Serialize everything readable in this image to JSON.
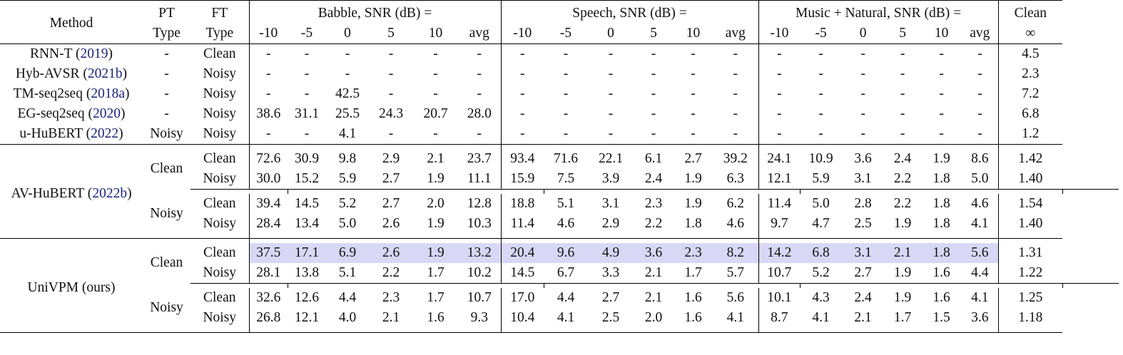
{
  "header": {
    "method": "Method",
    "pt1": "PT",
    "pt2": "Type",
    "ft1": "FT",
    "ft2": "Type",
    "babble": "Babble, SNR (dB) =",
    "speech": "Speech, SNR (dB) =",
    "music": "Music + Natural, SNR (dB) =",
    "clean": "Clean",
    "inf": "∞",
    "snr": [
      "-10",
      "-5",
      "0",
      "5",
      "10",
      "avg"
    ]
  },
  "baselines": [
    {
      "name": "RNN-T (",
      "cite": "2019",
      "close": ")",
      "pt": "-",
      "ft": "Clean",
      "babble": [
        "-",
        "-",
        "-",
        "-",
        "-",
        "-"
      ],
      "speech": [
        "-",
        "-",
        "-",
        "-",
        "-",
        "-"
      ],
      "music": [
        "-",
        "-",
        "-",
        "-",
        "-",
        "-"
      ],
      "clean": "4.5"
    },
    {
      "name": "Hyb-AVSR (",
      "cite": "2021b",
      "close": ")",
      "pt": "-",
      "ft": "Noisy",
      "babble": [
        "-",
        "-",
        "-",
        "-",
        "-",
        "-"
      ],
      "speech": [
        "-",
        "-",
        "-",
        "-",
        "-",
        "-"
      ],
      "music": [
        "-",
        "-",
        "-",
        "-",
        "-",
        "-"
      ],
      "clean": "2.3"
    },
    {
      "name": "TM-seq2seq (",
      "cite": "2018a",
      "close": ")",
      "pt": "-",
      "ft": "Noisy",
      "babble": [
        "-",
        "-",
        "42.5",
        "-",
        "-",
        "-"
      ],
      "speech": [
        "-",
        "-",
        "-",
        "-",
        "-",
        "-"
      ],
      "music": [
        "-",
        "-",
        "-",
        "-",
        "-",
        "-"
      ],
      "clean": "7.2"
    },
    {
      "name": "EG-seq2seq (",
      "cite": "2020",
      "close": ")",
      "pt": "-",
      "ft": "Noisy",
      "babble": [
        "38.6",
        "31.1",
        "25.5",
        "24.3",
        "20.7",
        "28.0"
      ],
      "speech": [
        "-",
        "-",
        "-",
        "-",
        "-",
        "-"
      ],
      "music": [
        "-",
        "-",
        "-",
        "-",
        "-",
        "-"
      ],
      "clean": "6.8"
    },
    {
      "name": "u-HuBERT (",
      "cite": "2022",
      "close": ")",
      "pt": "Noisy",
      "ft": "Noisy",
      "babble": [
        "-",
        "-",
        "4.1",
        "-",
        "-",
        "-"
      ],
      "speech": [
        "-",
        "-",
        "-",
        "-",
        "-",
        "-"
      ],
      "music": [
        "-",
        "-",
        "-",
        "-",
        "-",
        "-"
      ],
      "clean": "1.2"
    }
  ],
  "avhubert": {
    "name": "AV-HuBERT (",
    "cite": "2022b",
    "close": ")",
    "groups": [
      {
        "pt": "Clean",
        "rows": [
          {
            "ft": "Clean",
            "babble": [
              "72.6",
              "30.9",
              "9.8",
              "2.9",
              "2.1",
              "23.7"
            ],
            "speech": [
              "93.4",
              "71.6",
              "22.1",
              "6.1",
              "2.7",
              "39.2"
            ],
            "music": [
              "24.1",
              "10.9",
              "3.6",
              "2.4",
              "1.9",
              "8.6"
            ],
            "clean": "1.42"
          },
          {
            "ft": "Noisy",
            "babble": [
              "30.0",
              "15.2",
              "5.9",
              "2.7",
              "1.9",
              "11.1"
            ],
            "speech": [
              "15.9",
              "7.5",
              "3.9",
              "2.4",
              "1.9",
              "6.3"
            ],
            "music": [
              "12.1",
              "5.9",
              "3.1",
              "2.2",
              "1.8",
              "5.0"
            ],
            "clean": "1.40"
          }
        ]
      },
      {
        "pt": "Noisy",
        "rows": [
          {
            "ft": "Clean",
            "babble": [
              "39.4",
              "14.5",
              "5.2",
              "2.7",
              "2.0",
              "12.8"
            ],
            "speech": [
              "18.8",
              "5.1",
              "3.1",
              "2.3",
              "1.9",
              "6.2"
            ],
            "music": [
              "11.4",
              "5.0",
              "2.8",
              "2.2",
              "1.8",
              "4.6"
            ],
            "clean": "1.54"
          },
          {
            "ft": "Noisy",
            "babble": [
              "28.4",
              "13.4",
              "5.0",
              "2.6",
              "1.9",
              "10.3"
            ],
            "speech": [
              "11.4",
              "4.6",
              "2.9",
              "2.2",
              "1.8",
              "4.6"
            ],
            "music": [
              "9.7",
              "4.7",
              "2.5",
              "1.9",
              "1.8",
              "4.1"
            ],
            "clean": "1.40"
          }
        ]
      }
    ]
  },
  "univpm": {
    "name": "UniVPM (ours)",
    "groups": [
      {
        "pt": "Clean",
        "rows": [
          {
            "ft": "Clean",
            "babble": [
              "37.5",
              "17.1",
              "6.9",
              "2.6",
              "1.9",
              "13.2"
            ],
            "speech": [
              "20.4",
              "9.6",
              "4.9",
              "3.6",
              "2.3",
              "8.2"
            ],
            "music": [
              "14.2",
              "6.8",
              "3.1",
              "2.1",
              "1.8",
              "5.6"
            ],
            "clean": "1.31"
          },
          {
            "ft": "Noisy",
            "babble": [
              "28.1",
              "13.8",
              "5.1",
              "2.2",
              "1.7",
              "10.2"
            ],
            "speech": [
              "14.5",
              "6.7",
              "3.3",
              "2.1",
              "1.7",
              "5.7"
            ],
            "music": [
              "10.7",
              "5.2",
              "2.7",
              "1.9",
              "1.6",
              "4.4"
            ],
            "clean": "1.22"
          }
        ]
      },
      {
        "pt": "Noisy",
        "rows": [
          {
            "ft": "Clean",
            "babble": [
              "32.6",
              "12.6",
              "4.4",
              "2.3",
              "1.7",
              "10.7"
            ],
            "speech": [
              "17.0",
              "4.4",
              "2.7",
              "2.1",
              "1.6",
              "5.6"
            ],
            "music": [
              "10.1",
              "4.3",
              "2.4",
              "1.9",
              "1.6",
              "4.1"
            ],
            "clean": "1.25"
          },
          {
            "ft": "Noisy",
            "babble": [
              "26.8",
              "12.1",
              "4.0",
              "2.1",
              "1.6",
              "9.3"
            ],
            "speech": [
              "10.4",
              "4.1",
              "2.5",
              "2.0",
              "1.6",
              "4.1"
            ],
            "music": [
              "8.7",
              "4.1",
              "2.1",
              "1.7",
              "1.5",
              "3.6"
            ],
            "clean": "1.18"
          }
        ]
      }
    ]
  }
}
